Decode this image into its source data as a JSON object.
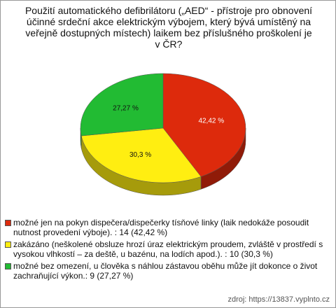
{
  "chart_data": {
    "type": "pie",
    "title": "Použití automatického defibrilátoru („AED“ - přístroje pro obnovení účinné srdeční akce elektrickým výbojem, který bývá umístěný na veřejně dostupných místech) laikem bez příslušného proškolení je v ČR?",
    "categories": [
      "možné jen na pokyn dispečera/dispečerky tísňové linky (laik nedokáže posoudit nutnost provedení výboje). : 14 (42,42 %)",
      "zakázáno (neškolené obsluze hrozí úraz elektrickým proudem, zvláště v prostředí s vysokou vlhkostí – za deště, u bazénu, na lodích apod.). : 10 (30,3 %)",
      "možné bez omezení, u člověka s náhlou zástavou oběhu může jít dokonce o život zachraňující výkon.: 9 (27,27 %)"
    ],
    "values": [
      42.42,
      30.3,
      27.27
    ],
    "value_labels": [
      "42,42 %",
      "30,3 %",
      "27,27 %"
    ],
    "colors": [
      "#dd2a0c",
      "#ffee11",
      "#22bb33"
    ],
    "source": "zdroj: https://13837.vyplnto.cz"
  }
}
